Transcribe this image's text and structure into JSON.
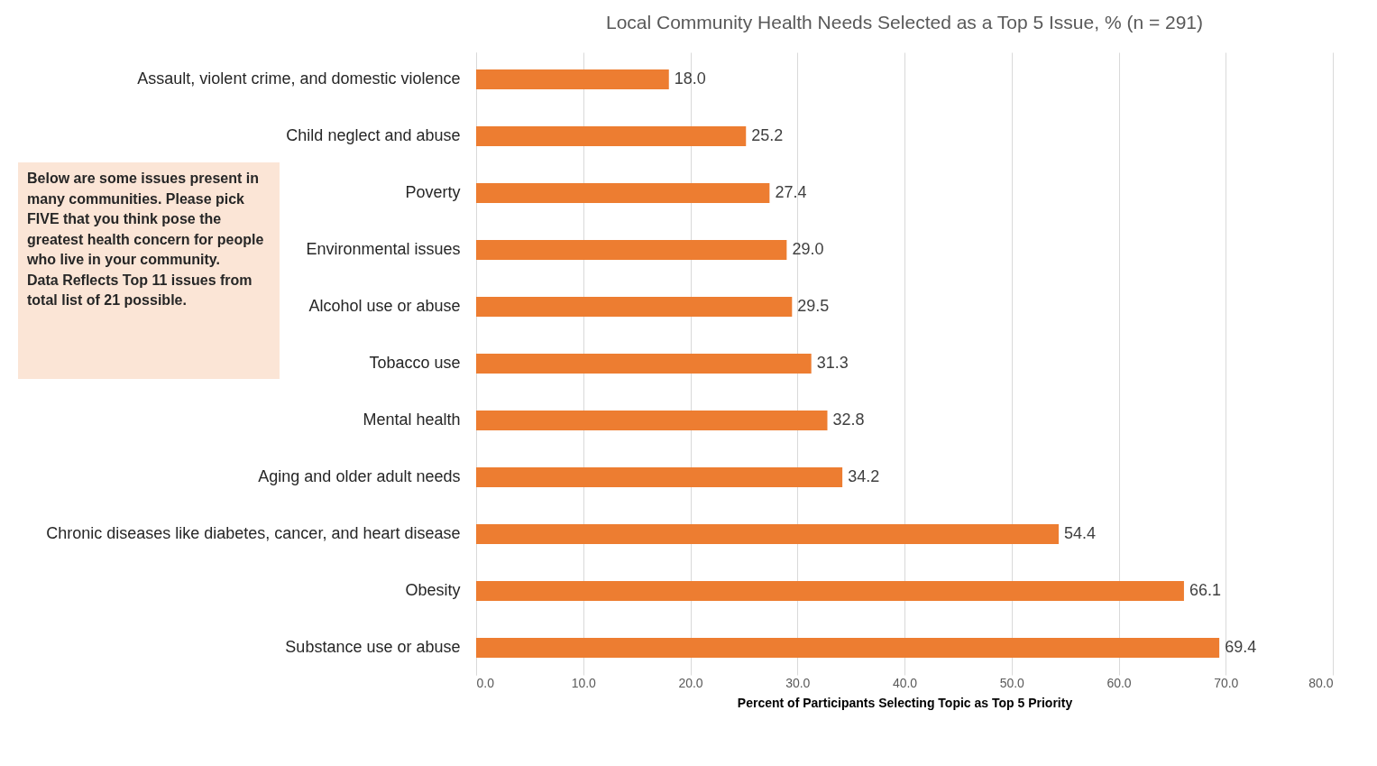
{
  "chart_data": {
    "type": "bar",
    "orientation": "horizontal",
    "title": "Local Community Health Needs Selected as a Top 5 Issue, % (n = 291)",
    "xlabel": "Percent of Participants Selecting Topic as Top 5 Priority",
    "categories": [
      "Assault, violent crime, and domestic violence",
      "Child neglect and abuse",
      "Poverty",
      "Environmental issues",
      "Alcohol use or abuse",
      "Tobacco use",
      "Mental health",
      "Aging and older adult needs",
      "Chronic diseases like diabetes, cancer, and heart disease",
      "Obesity",
      "Substance use or abuse"
    ],
    "values": [
      18.0,
      25.2,
      27.4,
      29.0,
      29.5,
      31.3,
      32.8,
      34.2,
      54.4,
      66.1,
      69.4
    ],
    "value_labels": [
      "18.0",
      "25.2",
      "27.4",
      "29.0",
      "29.5",
      "31.3",
      "32.8",
      "34.2",
      "54.4",
      "66.1",
      "69.4"
    ],
    "color": "#ed7d31",
    "xlim": [
      0,
      80
    ],
    "xticks": [
      {
        "value": 0,
        "label": "0.0"
      },
      {
        "value": 10,
        "label": "10.0"
      },
      {
        "value": 20,
        "label": "20.0"
      },
      {
        "value": 30,
        "label": "30.0"
      },
      {
        "value": 40,
        "label": "40.0"
      },
      {
        "value": 50,
        "label": "50.0"
      },
      {
        "value": 60,
        "label": "60.0"
      },
      {
        "value": 70,
        "label": "70.0"
      },
      {
        "value": 80,
        "label": "80.0"
      }
    ],
    "grid": "x",
    "annotations": [
      "Below are some issues present in many communities.  Please pick FIVE that you think pose the greatest health concern for people who live in your community.",
      "Data Reflects Top 11 issues from total list of 21 possible."
    ]
  }
}
